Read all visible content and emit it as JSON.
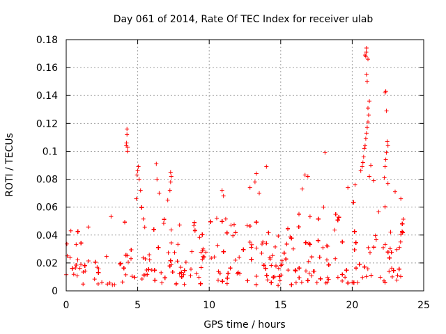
{
  "chart_data": {
    "type": "scatter",
    "title": "Day 061 of 2014, Rate Of TEC Index for receiver ulab",
    "xlabel": "GPS time / hours",
    "ylabel": "ROTI / TECUs",
    "xlim": [
      0,
      25
    ],
    "ylim": [
      0,
      0.18
    ],
    "xticks": [
      0,
      5,
      10,
      15,
      20,
      25
    ],
    "yticks": [
      0,
      0.02,
      0.04,
      0.06,
      0.08,
      0.1,
      0.12,
      0.14,
      0.16,
      0.18
    ],
    "ytick_labels": [
      "0",
      "0.02",
      "0.04",
      "0.06",
      "0.08",
      "0.1",
      "0.12",
      "0.14",
      "0.16",
      "0.18"
    ],
    "grid": true,
    "marker": "+",
    "color": "#ff0000",
    "envelope": [
      {
        "x": 0.0,
        "min": 0.005,
        "max": 0.055
      },
      {
        "x": 1.0,
        "min": 0.005,
        "max": 0.052
      },
      {
        "x": 2.0,
        "min": 0.004,
        "max": 0.05
      },
      {
        "x": 3.0,
        "min": 0.004,
        "max": 0.056
      },
      {
        "x": 4.0,
        "min": 0.005,
        "max": 0.06
      },
      {
        "x": 4.6,
        "min": 0.01,
        "max": 0.04
      },
      {
        "x": 5.0,
        "min": 0.005,
        "max": 0.075
      },
      {
        "x": 5.8,
        "min": 0.01,
        "max": 0.04
      },
      {
        "x": 6.5,
        "min": 0.005,
        "max": 0.05
      },
      {
        "x": 7.5,
        "min": 0.005,
        "max": 0.055
      },
      {
        "x": 9.0,
        "min": 0.004,
        "max": 0.052
      },
      {
        "x": 10.5,
        "min": 0.005,
        "max": 0.058
      },
      {
        "x": 12.0,
        "min": 0.005,
        "max": 0.055
      },
      {
        "x": 13.0,
        "min": 0.004,
        "max": 0.06
      },
      {
        "x": 14.0,
        "min": 0.005,
        "max": 0.045
      },
      {
        "x": 14.9,
        "min": 0.002,
        "max": 0.04
      },
      {
        "x": 16.0,
        "min": 0.004,
        "max": 0.062
      },
      {
        "x": 17.5,
        "min": 0.005,
        "max": 0.058
      },
      {
        "x": 19.0,
        "min": 0.006,
        "max": 0.055
      },
      {
        "x": 20.5,
        "min": 0.005,
        "max": 0.07
      },
      {
        "x": 21.5,
        "min": 0.005,
        "max": 0.062
      },
      {
        "x": 22.5,
        "min": 0.003,
        "max": 0.068
      },
      {
        "x": 23.6,
        "min": 0.006,
        "max": 0.06
      }
    ],
    "outliers": [
      {
        "x": 4.25,
        "y": 0.116
      },
      {
        "x": 4.25,
        "y": 0.112
      },
      {
        "x": 4.22,
        "y": 0.106
      },
      {
        "x": 4.3,
        "y": 0.103
      },
      {
        "x": 4.28,
        "y": 0.1
      },
      {
        "x": 4.2,
        "y": 0.104
      },
      {
        "x": 5.05,
        "y": 0.089
      },
      {
        "x": 5.0,
        "y": 0.086
      },
      {
        "x": 4.95,
        "y": 0.083
      },
      {
        "x": 5.1,
        "y": 0.08
      },
      {
        "x": 4.9,
        "y": 0.066
      },
      {
        "x": 5.2,
        "y": 0.072
      },
      {
        "x": 6.3,
        "y": 0.091
      },
      {
        "x": 6.35,
        "y": 0.08
      },
      {
        "x": 6.5,
        "y": 0.07
      },
      {
        "x": 7.3,
        "y": 0.085
      },
      {
        "x": 7.35,
        "y": 0.082
      },
      {
        "x": 7.3,
        "y": 0.078
      },
      {
        "x": 7.25,
        "y": 0.072
      },
      {
        "x": 7.1,
        "y": 0.065
      },
      {
        "x": 10.9,
        "y": 0.072
      },
      {
        "x": 11.0,
        "y": 0.068
      },
      {
        "x": 12.85,
        "y": 0.074
      },
      {
        "x": 13.3,
        "y": 0.084
      },
      {
        "x": 13.2,
        "y": 0.078
      },
      {
        "x": 13.5,
        "y": 0.07
      },
      {
        "x": 14.0,
        "y": 0.089
      },
      {
        "x": 16.7,
        "y": 0.083
      },
      {
        "x": 16.9,
        "y": 0.082
      },
      {
        "x": 16.5,
        "y": 0.073
      },
      {
        "x": 18.1,
        "y": 0.099
      },
      {
        "x": 18.0,
        "y": 0.06
      },
      {
        "x": 19.7,
        "y": 0.074
      },
      {
        "x": 20.2,
        "y": 0.076
      },
      {
        "x": 20.6,
        "y": 0.086
      },
      {
        "x": 20.7,
        "y": 0.089
      },
      {
        "x": 20.75,
        "y": 0.092
      },
      {
        "x": 20.8,
        "y": 0.096
      },
      {
        "x": 20.85,
        "y": 0.102
      },
      {
        "x": 20.9,
        "y": 0.104
      },
      {
        "x": 20.95,
        "y": 0.109
      },
      {
        "x": 21.0,
        "y": 0.113
      },
      {
        "x": 21.05,
        "y": 0.117
      },
      {
        "x": 21.1,
        "y": 0.121
      },
      {
        "x": 21.15,
        "y": 0.126
      },
      {
        "x": 21.1,
        "y": 0.131
      },
      {
        "x": 21.2,
        "y": 0.136
      },
      {
        "x": 21.05,
        "y": 0.15
      },
      {
        "x": 21.0,
        "y": 0.155
      },
      {
        "x": 20.95,
        "y": 0.168
      },
      {
        "x": 20.98,
        "y": 0.171
      },
      {
        "x": 21.0,
        "y": 0.174
      },
      {
        "x": 20.9,
        "y": 0.169
      },
      {
        "x": 21.1,
        "y": 0.166
      },
      {
        "x": 21.3,
        "y": 0.09
      },
      {
        "x": 21.5,
        "y": 0.079
      },
      {
        "x": 21.2,
        "y": 0.082
      },
      {
        "x": 22.3,
        "y": 0.142
      },
      {
        "x": 22.35,
        "y": 0.143
      },
      {
        "x": 22.4,
        "y": 0.129
      },
      {
        "x": 22.45,
        "y": 0.107
      },
      {
        "x": 22.5,
        "y": 0.104
      },
      {
        "x": 22.4,
        "y": 0.099
      },
      {
        "x": 22.35,
        "y": 0.094
      },
      {
        "x": 22.3,
        "y": 0.089
      },
      {
        "x": 22.25,
        "y": 0.081
      },
      {
        "x": 22.5,
        "y": 0.077
      },
      {
        "x": 23.0,
        "y": 0.071
      },
      {
        "x": 23.4,
        "y": 0.066
      }
    ]
  }
}
